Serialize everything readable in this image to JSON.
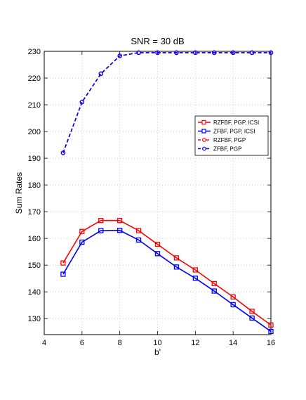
{
  "chart_data": {
    "type": "line",
    "title": "SNR = 30 dB",
    "xlabel": "b'",
    "ylabel": "Sum Rates",
    "xlim": [
      4,
      16
    ],
    "ylim": [
      124,
      230
    ],
    "xticks": [
      4,
      6,
      8,
      10,
      12,
      14,
      16
    ],
    "yticks": [
      130,
      140,
      150,
      160,
      170,
      180,
      190,
      200,
      210,
      220,
      230
    ],
    "grid": true,
    "legend_position": "right",
    "x": [
      5,
      6,
      7,
      8,
      9,
      10,
      11,
      12,
      13,
      14,
      15,
      16
    ],
    "series": [
      {
        "name": "RZFBF, PGP, ICSI",
        "color": "#ff0000",
        "line": "solid",
        "marker": "square",
        "values": [
          150.8,
          162.6,
          166.7,
          166.7,
          162.9,
          157.8,
          152.7,
          148.2,
          143.1,
          138.1,
          132.7,
          127.6
        ]
      },
      {
        "name": "ZFBF, PGP, ICSI",
        "color": "#0000ff",
        "line": "solid",
        "marker": "square",
        "values": [
          146.6,
          158.6,
          162.9,
          163.0,
          159.4,
          154.3,
          149.3,
          145.1,
          140.3,
          135.2,
          130.2,
          125.2
        ]
      },
      {
        "name": "RZFBF, PGP",
        "color": "#ff0000",
        "line": "dashed",
        "marker": "circle",
        "values": [
          192.0,
          211.0,
          221.6,
          228.3,
          229.5,
          229.5,
          229.5,
          229.5,
          229.5,
          229.5,
          229.5,
          229.5
        ]
      },
      {
        "name": "ZFBF, PGP",
        "color": "#0000ff",
        "line": "dashed",
        "marker": "circle",
        "values": [
          192.0,
          211.0,
          221.6,
          228.3,
          229.5,
          229.5,
          229.5,
          229.5,
          229.5,
          229.5,
          229.5,
          229.5
        ]
      }
    ]
  }
}
